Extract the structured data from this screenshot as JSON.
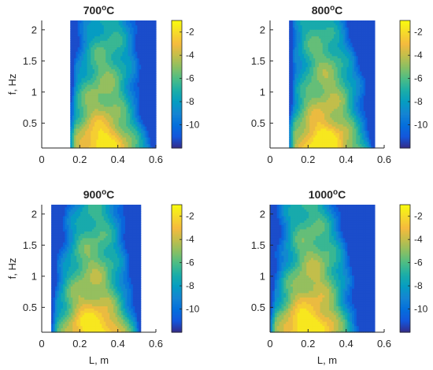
{
  "chart_data": [
    {
      "type": "heatmap",
      "title_main": "700",
      "title_sup": "o",
      "title_unit": "C",
      "xlabel": "",
      "ylabel": "f, Hz",
      "xlim": [
        0,
        0.6
      ],
      "ylim": [
        0.1,
        2.15
      ],
      "x_ticks": [
        "0",
        "0.2",
        "0.4",
        "0.6"
      ],
      "y_ticks": [
        "0.5",
        "1",
        "1.5",
        "2"
      ],
      "data_x_range": [
        0.15,
        0.6
      ],
      "colorbar": {
        "min": -12,
        "max": -1,
        "ticks": [
          "-2",
          "-4",
          "-6",
          "-8",
          "-10"
        ]
      },
      "ridge": [
        [
          0.1,
          0.32
        ],
        [
          0.8,
          0.31
        ],
        [
          1.3,
          0.33
        ],
        [
          2.1,
          0.35
        ]
      ],
      "peak_level": -2.2
    },
    {
      "type": "heatmap",
      "title_main": "800",
      "title_sup": "o",
      "title_unit": "C",
      "xlabel": "",
      "ylabel": "",
      "xlim": [
        0,
        0.6
      ],
      "ylim": [
        0.1,
        2.15
      ],
      "x_ticks": [
        "0",
        "0.2",
        "0.4",
        "0.6"
      ],
      "y_ticks": [
        "0.5",
        "1",
        "1.5",
        "2"
      ],
      "data_x_range": [
        0.1,
        0.55
      ],
      "colorbar": {
        "min": -12,
        "max": -1,
        "ticks": [
          "-2",
          "-4",
          "-6",
          "-8",
          "-10"
        ]
      },
      "ridge": [
        [
          0.1,
          0.28
        ],
        [
          0.6,
          0.28
        ],
        [
          1.2,
          0.3
        ],
        [
          1.7,
          0.27
        ],
        [
          2.1,
          0.25
        ]
      ],
      "peak_level": -1.8
    },
    {
      "type": "heatmap",
      "title_main": "900",
      "title_sup": "o",
      "title_unit": "C",
      "xlabel": "L, m",
      "ylabel": "f, Hz",
      "xlim": [
        0,
        0.6
      ],
      "ylim": [
        0.1,
        2.15
      ],
      "x_ticks": [
        "0",
        "0.2",
        "0.4",
        "0.6"
      ],
      "y_ticks": [
        "0.5",
        "1",
        "1.5",
        "2"
      ],
      "data_x_range": [
        0.05,
        0.52
      ],
      "colorbar": {
        "min": -12,
        "max": -1,
        "ticks": [
          "-2",
          "-4",
          "-6",
          "-8",
          "-10"
        ]
      },
      "ridge": [
        [
          0.1,
          0.28
        ],
        [
          0.7,
          0.26
        ],
        [
          1.3,
          0.27
        ],
        [
          2.1,
          0.28
        ]
      ],
      "peak_level": -2.0
    },
    {
      "type": "heatmap",
      "title_main": "1000",
      "title_sup": "o",
      "title_unit": "C",
      "xlabel": "L, m",
      "ylabel": "",
      "xlim": [
        0,
        0.6
      ],
      "ylim": [
        0.1,
        2.15
      ],
      "x_ticks": [
        "0",
        "0.2",
        "0.4",
        "0.6"
      ],
      "y_ticks": [
        "0.5",
        "1",
        "1.5",
        "2"
      ],
      "data_x_range": [
        0.0,
        0.55
      ],
      "colorbar": {
        "min": -12,
        "max": -1,
        "ticks": [
          "-2",
          "-4",
          "-6",
          "-8",
          "-10"
        ]
      },
      "ridge": [
        [
          0.1,
          0.2
        ],
        [
          0.6,
          0.21
        ],
        [
          1.2,
          0.23
        ],
        [
          1.7,
          0.22
        ],
        [
          2.1,
          0.2
        ]
      ],
      "peak_level": -1.6
    }
  ]
}
